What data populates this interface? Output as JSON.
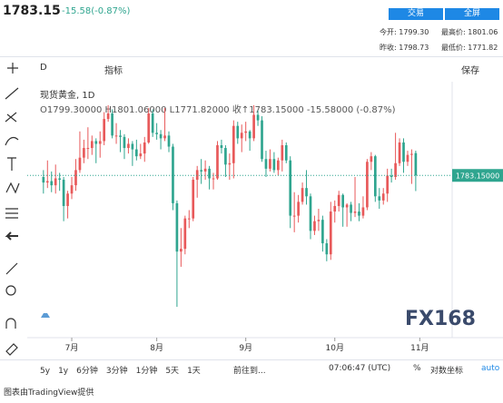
{
  "header": {
    "price": "1783.15",
    "change": "-15.58(-0.87%)",
    "trade_button": "交易",
    "fullscreen_button": "全屏",
    "stats": [
      [
        "今开:",
        "1799.30"
      ],
      [
        "最高价:",
        "1801.06"
      ],
      [
        "昨收:",
        "1798.73"
      ],
      [
        "最低价:",
        "1771.82"
      ]
    ]
  },
  "toolbar": {
    "interval": "D",
    "indicators": "指标",
    "save": "保存"
  },
  "legend": {
    "symbol": "现货黄金, 1D",
    "open": "O1799.30000",
    "high": "H1801.06000",
    "low": "L1771.82000",
    "close": "收↑1783.15000",
    "change": "-15.58000 (-0.87%)"
  },
  "chart_data": {
    "type": "candlestick",
    "up_color": "#e8595a",
    "down_color": "#2fa58f",
    "price_label": "1783.15000",
    "logo": "FX168",
    "xlim": [
      -4,
      101
    ],
    "ylim": [
      1667,
      1851
    ],
    "xticks": [
      {
        "value": 7,
        "label": "7月"
      },
      {
        "value": 28,
        "label": "8月"
      },
      {
        "value": 50,
        "label": "9月"
      },
      {
        "value": 72,
        "label": "10月"
      },
      {
        "value": 93,
        "label": "11月"
      }
    ],
    "ohlc": [
      [
        1782,
        1787,
        1770,
        1778
      ],
      [
        1778,
        1794,
        1774,
        1779
      ],
      [
        1779,
        1786,
        1771,
        1776
      ],
      [
        1776,
        1791,
        1770,
        1781
      ],
      [
        1781,
        1785,
        1772,
        1780
      ],
      [
        1780,
        1782,
        1750,
        1761
      ],
      [
        1761,
        1772,
        1752,
        1770
      ],
      [
        1770,
        1782,
        1766,
        1776
      ],
      [
        1776,
        1795,
        1772,
        1787
      ],
      [
        1787,
        1815,
        1785,
        1796
      ],
      [
        1796,
        1809,
        1792,
        1803
      ],
      [
        1803,
        1818,
        1795,
        1803
      ],
      [
        1803,
        1812,
        1798,
        1808
      ],
      [
        1808,
        1810,
        1792,
        1806
      ],
      [
        1806,
        1815,
        1796,
        1808
      ],
      [
        1808,
        1829,
        1805,
        1824
      ],
      [
        1824,
        1834,
        1822,
        1828
      ],
      [
        1828,
        1831,
        1810,
        1812
      ],
      [
        1812,
        1821,
        1806,
        1812
      ],
      [
        1812,
        1816,
        1800,
        1811
      ],
      [
        1811,
        1813,
        1795,
        1803
      ],
      [
        1803,
        1810,
        1799,
        1806
      ],
      [
        1806,
        1808,
        1790,
        1802
      ],
      [
        1802,
        1809,
        1794,
        1797
      ],
      [
        1797,
        1806,
        1795,
        1799
      ],
      [
        1799,
        1811,
        1793,
        1807
      ],
      [
        1807,
        1832,
        1806,
        1828
      ],
      [
        1828,
        1831,
        1811,
        1814
      ],
      [
        1814,
        1821,
        1809,
        1813
      ],
      [
        1813,
        1816,
        1802,
        1810
      ],
      [
        1810,
        1832,
        1808,
        1812
      ],
      [
        1812,
        1815,
        1800,
        1804
      ],
      [
        1804,
        1806,
        1758,
        1763
      ],
      [
        1763,
        1765,
        1688,
        1728
      ],
      [
        1728,
        1745,
        1717,
        1730
      ],
      [
        1730,
        1754,
        1726,
        1752
      ],
      [
        1752,
        1758,
        1745,
        1752
      ],
      [
        1752,
        1782,
        1750,
        1780
      ],
      [
        1780,
        1790,
        1767,
        1787
      ],
      [
        1787,
        1795,
        1777,
        1786
      ],
      [
        1786,
        1794,
        1780,
        1788
      ],
      [
        1788,
        1790,
        1773,
        1781
      ],
      [
        1781,
        1785,
        1773,
        1781
      ],
      [
        1781,
        1808,
        1780,
        1805
      ],
      [
        1805,
        1809,
        1799,
        1803
      ],
      [
        1803,
        1805,
        1782,
        1791
      ],
      [
        1791,
        1799,
        1780,
        1792
      ],
      [
        1792,
        1823,
        1781,
        1819
      ],
      [
        1819,
        1822,
        1806,
        1810
      ],
      [
        1810,
        1820,
        1800,
        1814
      ],
      [
        1814,
        1822,
        1808,
        1815
      ],
      [
        1815,
        1816,
        1801,
        1810
      ],
      [
        1810,
        1834,
        1808,
        1827
      ],
      [
        1827,
        1830,
        1819,
        1823
      ],
      [
        1823,
        1826,
        1793,
        1795
      ],
      [
        1795,
        1801,
        1782,
        1788
      ],
      [
        1788,
        1802,
        1786,
        1795
      ],
      [
        1795,
        1800,
        1785,
        1787
      ],
      [
        1787,
        1796,
        1783,
        1794
      ],
      [
        1794,
        1809,
        1786,
        1805
      ],
      [
        1805,
        1807,
        1792,
        1794
      ],
      [
        1794,
        1797,
        1745,
        1754
      ],
      [
        1754,
        1771,
        1742,
        1754
      ],
      [
        1754,
        1769,
        1749,
        1764
      ],
      [
        1764,
        1778,
        1762,
        1774
      ],
      [
        1774,
        1787,
        1762,
        1768
      ],
      [
        1768,
        1770,
        1737,
        1743
      ],
      [
        1743,
        1754,
        1740,
        1750
      ],
      [
        1750,
        1759,
        1743,
        1751
      ],
      [
        1751,
        1754,
        1728,
        1734
      ],
      [
        1734,
        1737,
        1721,
        1726
      ],
      [
        1726,
        1764,
        1722,
        1757
      ],
      [
        1757,
        1765,
        1749,
        1761
      ],
      [
        1761,
        1772,
        1757,
        1769
      ],
      [
        1769,
        1770,
        1746,
        1760
      ],
      [
        1760,
        1763,
        1746,
        1762
      ],
      [
        1762,
        1764,
        1750,
        1756
      ],
      [
        1756,
        1782,
        1753,
        1757
      ],
      [
        1757,
        1763,
        1750,
        1754
      ],
      [
        1754,
        1768,
        1752,
        1760
      ],
      [
        1760,
        1795,
        1758,
        1793
      ],
      [
        1793,
        1800,
        1787,
        1797
      ],
      [
        1797,
        1798,
        1764,
        1768
      ],
      [
        1768,
        1774,
        1759,
        1765
      ],
      [
        1765,
        1774,
        1762,
        1770
      ],
      [
        1770,
        1788,
        1764,
        1783
      ],
      [
        1783,
        1788,
        1778,
        1782
      ],
      [
        1782,
        1814,
        1780,
        1792
      ],
      [
        1792,
        1810,
        1790,
        1807
      ],
      [
        1807,
        1810,
        1785,
        1793
      ],
      [
        1793,
        1801,
        1790,
        1798
      ],
      [
        1798,
        1802,
        1777,
        1798.73
      ],
      [
        1799.3,
        1801.06,
        1771.82,
        1783.15
      ]
    ]
  },
  "bottom_bar": {
    "ranges": [
      "5y",
      "1y",
      "6分钟",
      "3分钟",
      "1分钟",
      "5天",
      "1天"
    ],
    "goto": "前往到...",
    "time": "07:06:47 (UTC)",
    "percent": "%",
    "log": "对数坐标",
    "auto": "auto"
  },
  "footer": "图表由TradingView提供"
}
